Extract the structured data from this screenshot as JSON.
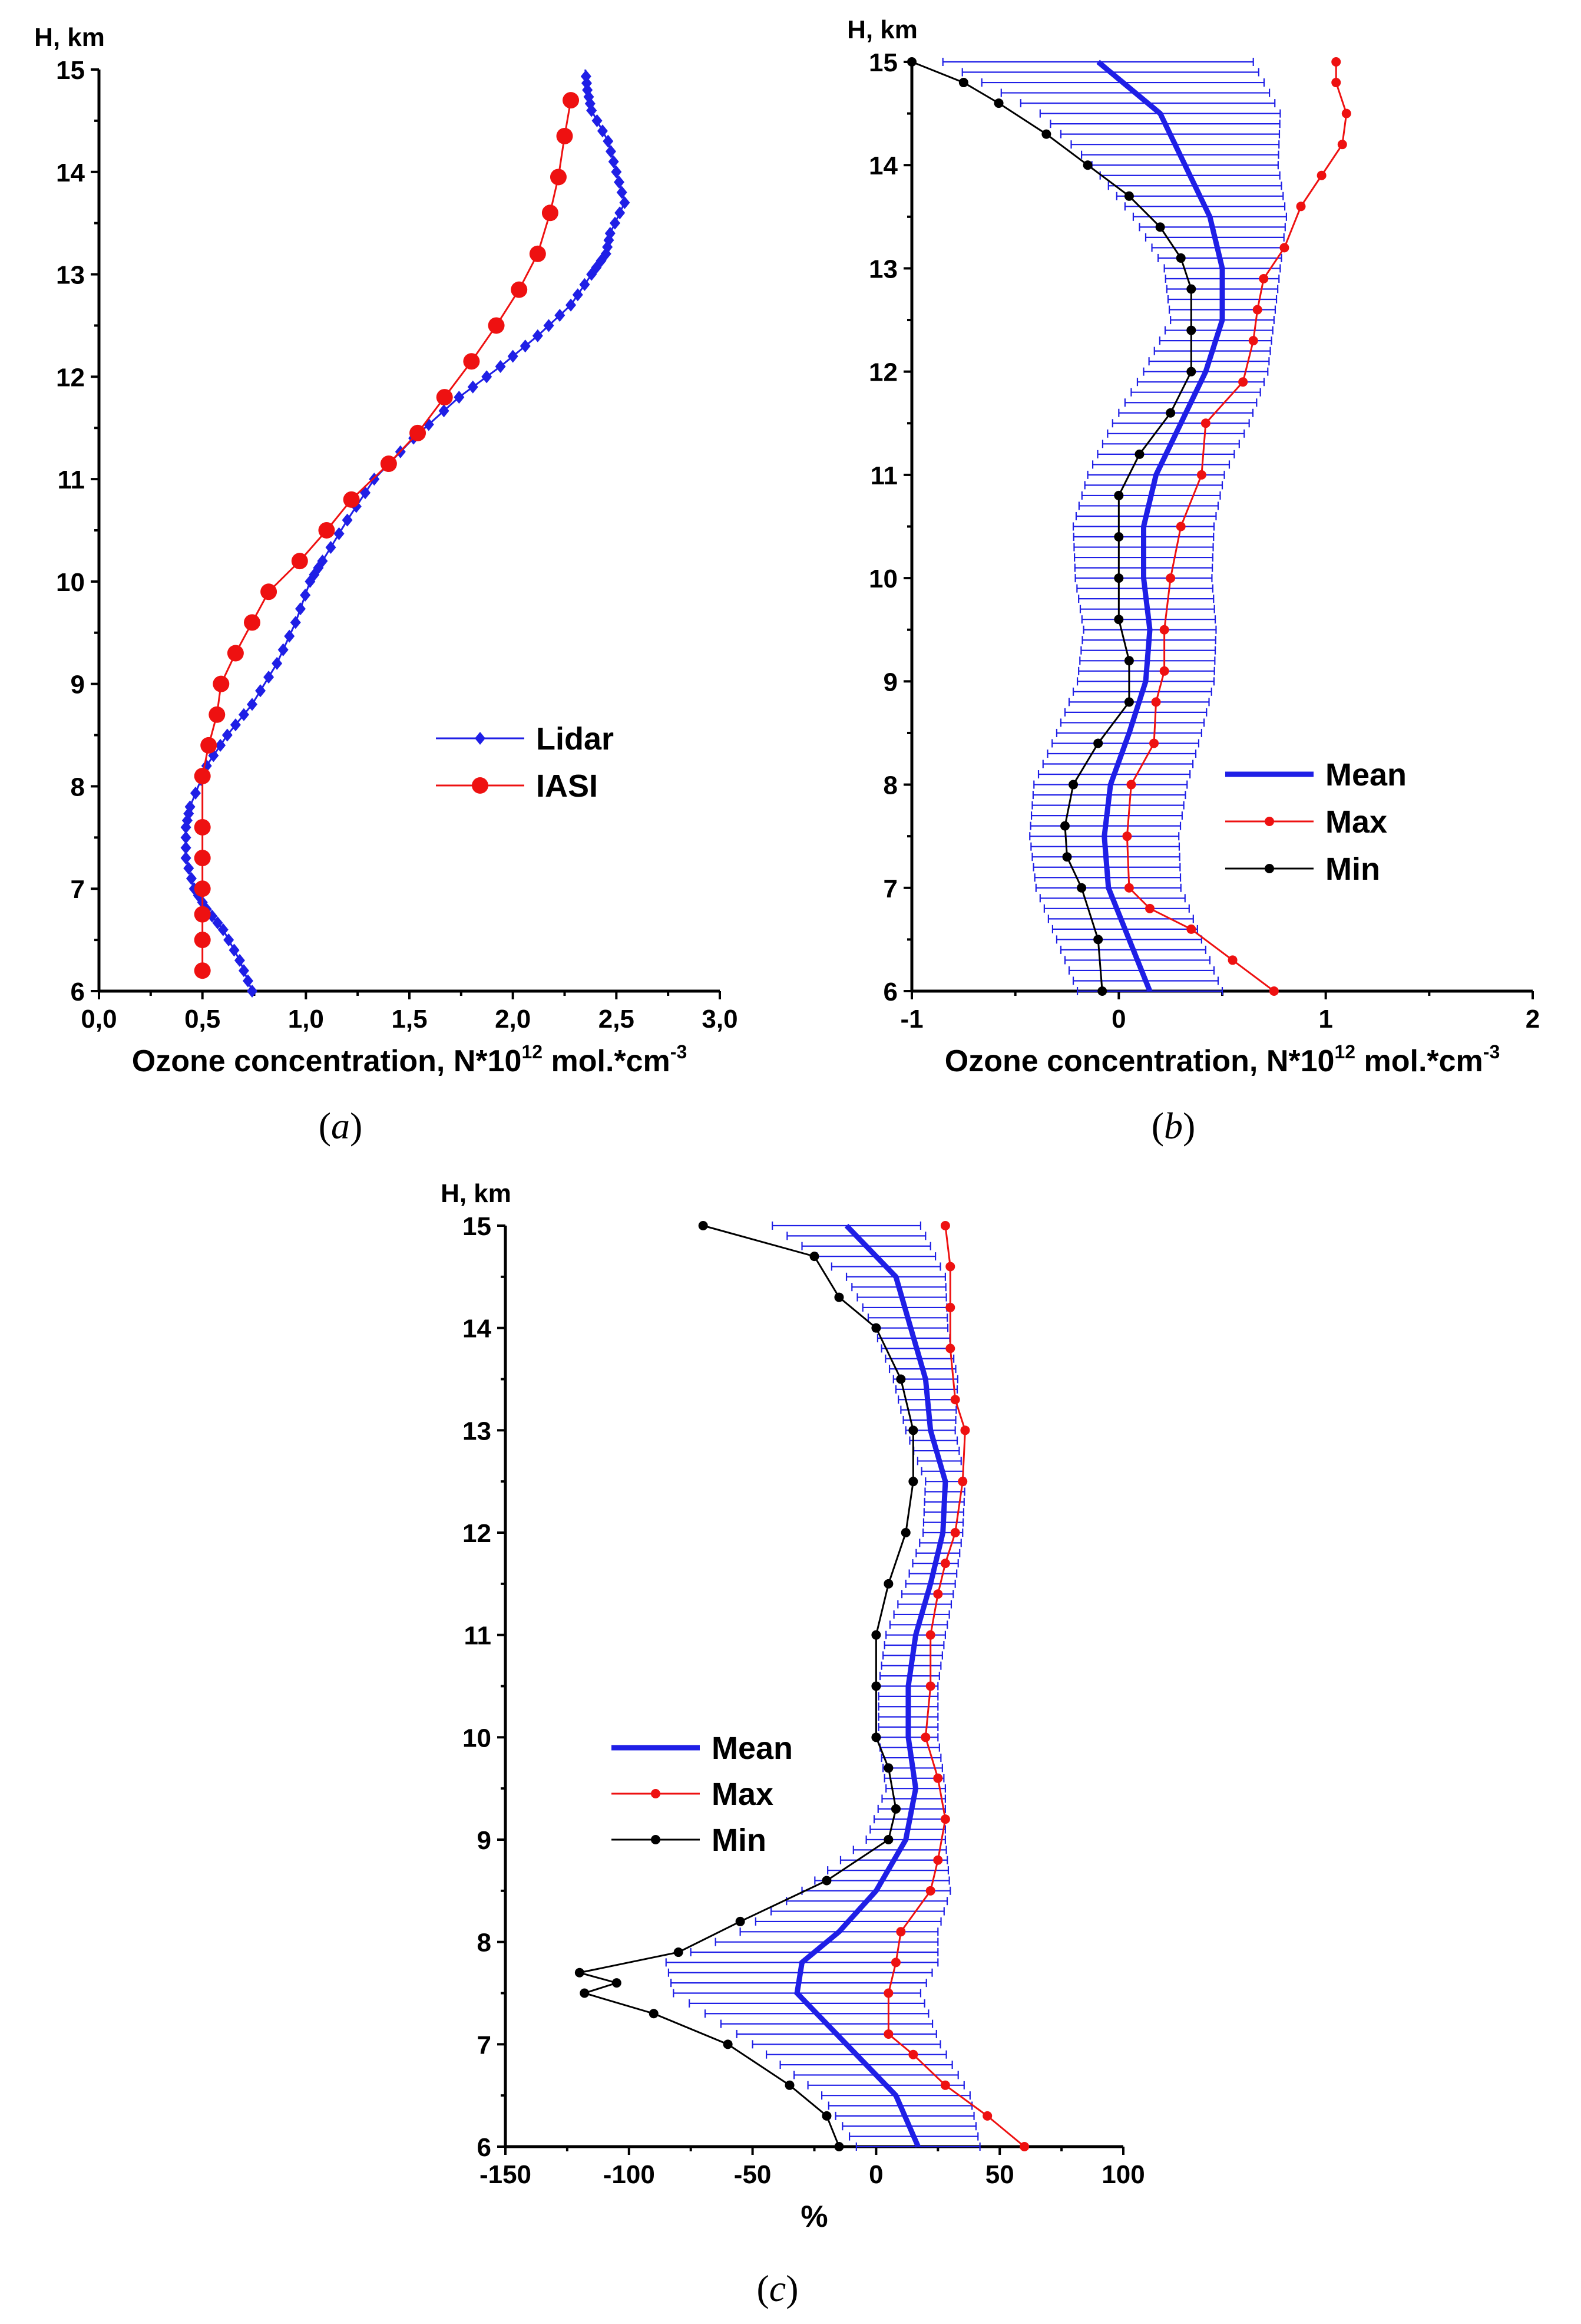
{
  "figure": {
    "panel_a": {
      "caption_open": "(",
      "caption_letter": "a",
      "caption_close": ")"
    },
    "panel_b": {
      "caption_open": "(",
      "caption_letter": "b",
      "caption_close": ")"
    },
    "panel_c": {
      "caption_open": "(",
      "caption_letter": "c",
      "caption_close": ")"
    }
  },
  "colors": {
    "blue": "#1f1fe6",
    "red": "#ee1111",
    "black": "#000000"
  },
  "chart_data": [
    {
      "id": "a",
      "type": "line",
      "ylabel": "H, km",
      "xlabel": "Ozone concentration, N*10",
      "xlabel_sup": "12",
      "xlabel_unit": " mol.*cm",
      "xlabel_unit_sup": "-3",
      "xlim": [
        0,
        3
      ],
      "ylim": [
        6,
        15
      ],
      "xticks": [
        0,
        0.5,
        1.0,
        1.5,
        2.0,
        2.5,
        3.0
      ],
      "xtick_labels": [
        "0,0",
        "0,5",
        "1,0",
        "1,5",
        "2,0",
        "2,5",
        "3,0"
      ],
      "yticks": [
        6,
        7,
        8,
        9,
        10,
        11,
        12,
        13,
        14,
        15
      ],
      "ytick_labels": [
        "6",
        "7",
        "8",
        "9",
        "10",
        "11",
        "12",
        "13",
        "14",
        "15"
      ],
      "legend_position": "center-right",
      "series": [
        {
          "name": "Lidar",
          "color": "blue",
          "marker": "diamond",
          "x": [
            0.74,
            0.68,
            0.6,
            0.52,
            0.46,
            0.42,
            0.42,
            0.44,
            0.52,
            0.62,
            0.74,
            0.86,
            0.95,
            1.02,
            1.08,
            1.2,
            1.33,
            1.52,
            1.74,
            1.94,
            2.12,
            2.28,
            2.38,
            2.45,
            2.47,
            2.54,
            2.5,
            2.46,
            2.38,
            2.36,
            2.35
          ],
          "y": [
            6.0,
            6.3,
            6.6,
            6.8,
            7.0,
            7.3,
            7.6,
            7.8,
            8.2,
            8.5,
            8.8,
            9.2,
            9.6,
            10.0,
            10.2,
            10.6,
            11.0,
            11.4,
            11.8,
            12.1,
            12.4,
            12.7,
            13.0,
            13.2,
            13.4,
            13.7,
            14.0,
            14.3,
            14.6,
            14.8,
            15.0
          ]
        },
        {
          "name": "IASI",
          "color": "red",
          "marker": "circle",
          "x": [
            0.5,
            0.5,
            0.5,
            0.5,
            0.5,
            0.5,
            0.5,
            0.53,
            0.57,
            0.59,
            0.66,
            0.74,
            0.82,
            0.97,
            1.1,
            1.22,
            1.4,
            1.54,
            1.67,
            1.8,
            1.92,
            2.03,
            2.12,
            2.18,
            2.22,
            2.25,
            2.28
          ],
          "y": [
            6.2,
            6.5,
            6.75,
            7.0,
            7.3,
            7.6,
            8.1,
            8.4,
            8.7,
            9.0,
            9.3,
            9.6,
            9.9,
            10.2,
            10.5,
            10.8,
            11.15,
            11.45,
            11.8,
            12.15,
            12.5,
            12.85,
            13.2,
            13.6,
            13.95,
            14.35,
            14.7
          ]
        }
      ]
    },
    {
      "id": "b",
      "type": "line",
      "ylabel": "H, km",
      "xlabel": "Ozone concentration, N*10",
      "xlabel_sup": "12",
      "xlabel_unit": " mol.*cm",
      "xlabel_unit_sup": "-3",
      "xlim": [
        -1,
        2
      ],
      "ylim": [
        6,
        15
      ],
      "xticks": [
        -1,
        0,
        1,
        2
      ],
      "xtick_labels": [
        "-1",
        "0",
        "1",
        "2"
      ],
      "yticks": [
        6,
        7,
        8,
        9,
        10,
        11,
        12,
        13,
        14,
        15
      ],
      "ytick_labels": [
        "6",
        "7",
        "8",
        "9",
        "10",
        "11",
        "12",
        "13",
        "14",
        "15"
      ],
      "legend_position": "lower-right",
      "series": [
        {
          "name": "Mean",
          "color": "blue",
          "marker": "none",
          "error_bars": true,
          "h": [
            6.0,
            6.5,
            7.0,
            7.5,
            8.0,
            8.5,
            9.0,
            9.5,
            10.0,
            10.5,
            11.0,
            11.5,
            12.0,
            12.5,
            13.0,
            13.5,
            14.0,
            14.5,
            15.0
          ],
          "x": [
            0.15,
            0.05,
            -0.05,
            -0.07,
            -0.04,
            0.05,
            0.13,
            0.15,
            0.12,
            0.12,
            0.18,
            0.3,
            0.42,
            0.5,
            0.5,
            0.44,
            0.32,
            0.2,
            -0.1
          ],
          "err_plus": [
            0.35,
            0.35,
            0.35,
            0.36,
            0.37,
            0.35,
            0.33,
            0.32,
            0.33,
            0.34,
            0.33,
            0.33,
            0.3,
            0.25,
            0.28,
            0.37,
            0.45,
            0.58,
            0.75
          ],
          "err_minus": [
            0.35,
            0.35,
            0.35,
            0.36,
            0.37,
            0.35,
            0.33,
            0.32,
            0.33,
            0.34,
            0.33,
            0.33,
            0.3,
            0.25,
            0.28,
            0.37,
            0.45,
            0.58,
            0.75
          ]
        },
        {
          "name": "Max",
          "color": "red",
          "marker": "circle",
          "h": [
            6.0,
            6.3,
            6.6,
            6.8,
            7.0,
            7.5,
            8.0,
            8.4,
            8.8,
            9.1,
            9.5,
            10.0,
            10.5,
            11.0,
            11.5,
            11.9,
            12.3,
            12.6,
            12.9,
            13.2,
            13.6,
            13.9,
            14.2,
            14.5,
            14.8,
            15.0
          ],
          "x": [
            0.75,
            0.55,
            0.35,
            0.15,
            0.05,
            0.04,
            0.06,
            0.17,
            0.18,
            0.22,
            0.22,
            0.25,
            0.3,
            0.4,
            0.42,
            0.6,
            0.65,
            0.67,
            0.7,
            0.8,
            0.88,
            0.98,
            1.08,
            1.1,
            1.05,
            1.05
          ],
          "size": "small"
        },
        {
          "name": "Min",
          "color": "black",
          "marker": "circle",
          "h": [
            6.0,
            6.5,
            7.0,
            7.3,
            7.6,
            8.0,
            8.4,
            8.8,
            9.2,
            9.6,
            10.0,
            10.4,
            10.8,
            11.2,
            11.6,
            12.0,
            12.4,
            12.8,
            13.1,
            13.4,
            13.7,
            14.0,
            14.3,
            14.6,
            14.8,
            15.0
          ],
          "x": [
            -0.08,
            -0.1,
            -0.18,
            -0.25,
            -0.26,
            -0.22,
            -0.1,
            0.05,
            0.05,
            0.0,
            0.0,
            0.0,
            0.0,
            0.1,
            0.25,
            0.35,
            0.35,
            0.35,
            0.3,
            0.2,
            0.05,
            -0.15,
            -0.35,
            -0.58,
            -0.75,
            -1.0
          ],
          "size": "small"
        }
      ]
    },
    {
      "id": "c",
      "type": "line",
      "ylabel": "H, km",
      "xlabel": "%",
      "xlim": [
        -150,
        100
      ],
      "ylim": [
        6,
        15
      ],
      "xticks": [
        -150,
        -100,
        -50,
        0,
        50,
        100
      ],
      "xtick_labels": [
        "-150",
        "-100",
        "-50",
        "0",
        "50",
        "100"
      ],
      "yticks": [
        6,
        7,
        8,
        9,
        10,
        11,
        12,
        13,
        14,
        15
      ],
      "ytick_labels": [
        "6",
        "7",
        "8",
        "9",
        "10",
        "11",
        "12",
        "13",
        "14",
        "15"
      ],
      "legend_position": "center-left",
      "series": [
        {
          "name": "Mean",
          "color": "blue",
          "marker": "none",
          "error_bars": true,
          "h": [
            6.0,
            6.5,
            7.0,
            7.5,
            7.8,
            8.1,
            8.5,
            9.0,
            9.5,
            10.0,
            10.5,
            11.0,
            11.5,
            12.0,
            12.5,
            13.0,
            13.5,
            14.0,
            14.5,
            15.0
          ],
          "x": [
            17,
            8,
            -12,
            -32,
            -30,
            -15,
            0,
            12,
            16,
            13,
            13,
            16,
            22,
            27,
            28,
            22,
            20,
            14,
            8,
            -12
          ],
          "err_plus": [
            25,
            30,
            38,
            50,
            55,
            40,
            30,
            16,
            12,
            12,
            12,
            12,
            10,
            8,
            8,
            10,
            13,
            15,
            20,
            30
          ],
          "err_minus": [
            25,
            30,
            38,
            50,
            55,
            40,
            30,
            16,
            12,
            12,
            12,
            12,
            10,
            8,
            8,
            10,
            13,
            15,
            20,
            30
          ]
        },
        {
          "name": "Max",
          "color": "red",
          "marker": "circle",
          "h": [
            6.0,
            6.3,
            6.6,
            6.9,
            7.1,
            7.5,
            7.8,
            8.1,
            8.5,
            8.8,
            9.2,
            9.6,
            10.0,
            10.5,
            11.0,
            11.4,
            11.7,
            12.0,
            12.5,
            13.0,
            13.3,
            13.8,
            14.2,
            14.6,
            15.0
          ],
          "x": [
            60,
            45,
            28,
            15,
            5,
            5,
            8,
            10,
            22,
            25,
            28,
            25,
            20,
            22,
            22,
            25,
            28,
            32,
            35,
            36,
            32,
            30,
            30,
            30,
            28
          ],
          "size": "small"
        },
        {
          "name": "Min",
          "color": "black",
          "marker": "circle",
          "h": [
            6.0,
            6.3,
            6.6,
            7.0,
            7.3,
            7.5,
            7.6,
            7.7,
            7.9,
            8.2,
            8.6,
            9.0,
            9.3,
            9.7,
            10.0,
            10.5,
            11.0,
            11.5,
            12.0,
            12.5,
            13.0,
            13.5,
            14.0,
            14.3,
            14.7,
            15.0
          ],
          "x": [
            -15,
            -20,
            -35,
            -60,
            -90,
            -118,
            -105,
            -120,
            -80,
            -55,
            -20,
            5,
            8,
            5,
            0,
            0,
            0,
            5,
            12,
            15,
            15,
            10,
            0,
            -15,
            -25,
            -70
          ],
          "size": "small"
        }
      ]
    }
  ]
}
